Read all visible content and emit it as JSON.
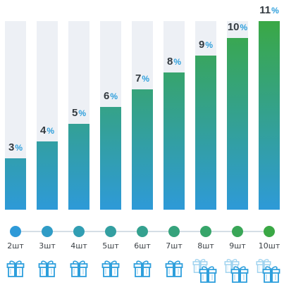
{
  "chart_data": {
    "type": "bar",
    "categories": [
      "2шт",
      "3шт",
      "4шт",
      "5шт",
      "6шт",
      "7шт",
      "8шт",
      "9шт",
      "10шт"
    ],
    "values": [
      3,
      4,
      5,
      6,
      7,
      8,
      9,
      10,
      11
    ],
    "value_suffix": "%",
    "ylim": [
      0,
      11
    ],
    "gift_counts": [
      1,
      1,
      1,
      1,
      1,
      1,
      2,
      2,
      2
    ]
  },
  "colors": {
    "start": "#2e9ad8",
    "end": "#3aa845",
    "track_bg": "#edf0f5",
    "percent": "#2e9fdc",
    "line": "#d5dee6",
    "gift": "#2e9fdc"
  }
}
